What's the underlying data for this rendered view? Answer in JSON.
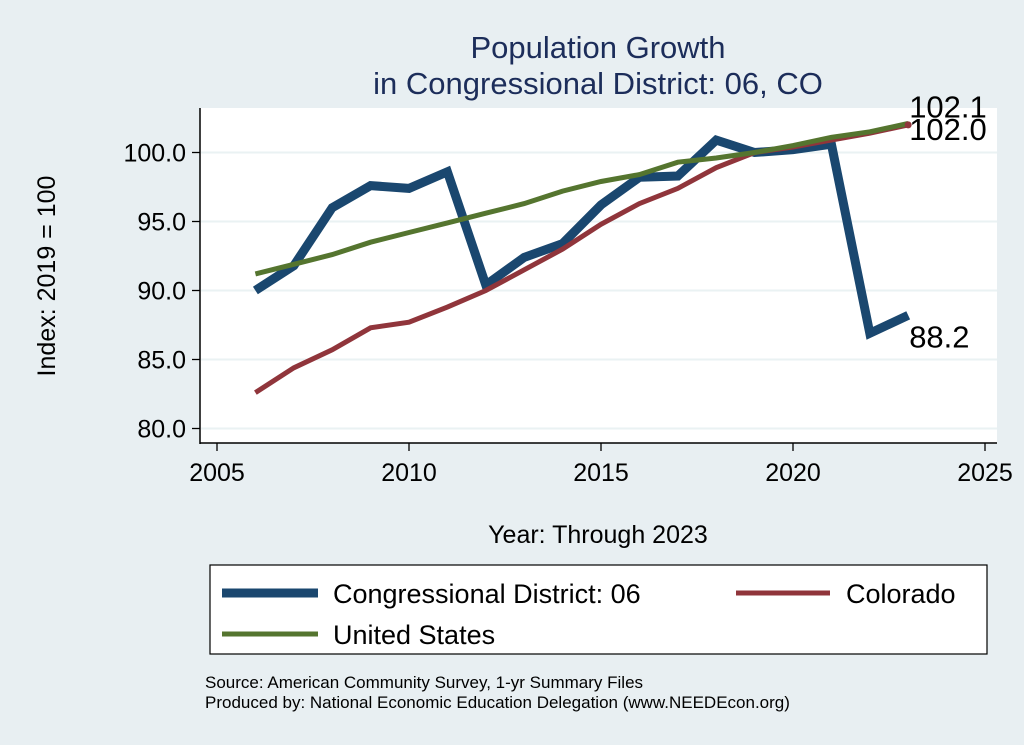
{
  "chart_data": {
    "type": "line",
    "title": [
      "Population Growth",
      "in Congressional District: 06, CO"
    ],
    "xlabel": "Year: Through 2023",
    "ylabel": "Index: 2019 = 100",
    "xlim": [
      2005,
      2025
    ],
    "ylim": [
      79.0,
      103.3
    ],
    "xticks": [
      2005,
      2010,
      2015,
      2020,
      2025
    ],
    "xtick_labels": [
      "2005",
      "2010",
      "2015",
      "2020",
      "2025"
    ],
    "yticks": [
      80,
      85,
      90,
      95,
      100
    ],
    "ytick_labels": [
      "80.0",
      "85.0",
      "90.0",
      "95.0",
      "100.0"
    ],
    "grid": true,
    "legend_position": "bottom",
    "x": [
      2006,
      2007,
      2008,
      2009,
      2010,
      2011,
      2012,
      2013,
      2014,
      2015,
      2016,
      2017,
      2018,
      2019,
      2020,
      2021,
      2022,
      2023
    ],
    "series": [
      {
        "name": "Congressional District: 06",
        "color": "#1a476f",
        "values": [
          90.0,
          91.8,
          96.0,
          97.6,
          97.4,
          98.6,
          90.4,
          92.4,
          93.4,
          96.2,
          98.2,
          98.3,
          100.9,
          100.0,
          100.2,
          100.6,
          86.9,
          88.2
        ],
        "end_label": "88.2"
      },
      {
        "name": "Colorado",
        "color": "#90353b",
        "values": [
          82.6,
          84.4,
          85.7,
          87.3,
          87.7,
          88.8,
          90.0,
          91.5,
          93.0,
          94.8,
          96.3,
          97.4,
          98.9,
          100.0,
          100.4,
          100.9,
          101.4,
          102.0
        ],
        "end_label": "102.0"
      },
      {
        "name": "United States",
        "color": "#55752f",
        "values": [
          91.2,
          91.9,
          92.6,
          93.5,
          94.2,
          94.9,
          95.6,
          96.3,
          97.2,
          97.9,
          98.4,
          99.3,
          99.6,
          100.0,
          100.5,
          101.1,
          101.5,
          102.1
        ],
        "end_label": "102.1"
      }
    ],
    "notes": [
      "Source: American Community Survey, 1-yr Summary Files",
      "Produced by: National Economic Education Delegation (www.NEEDEcon.org)"
    ]
  },
  "colors": {
    "background": "#e8eff2",
    "plot_background": "#ffffff",
    "grid": "#eaf2f3",
    "title": "#1c2d5a"
  }
}
